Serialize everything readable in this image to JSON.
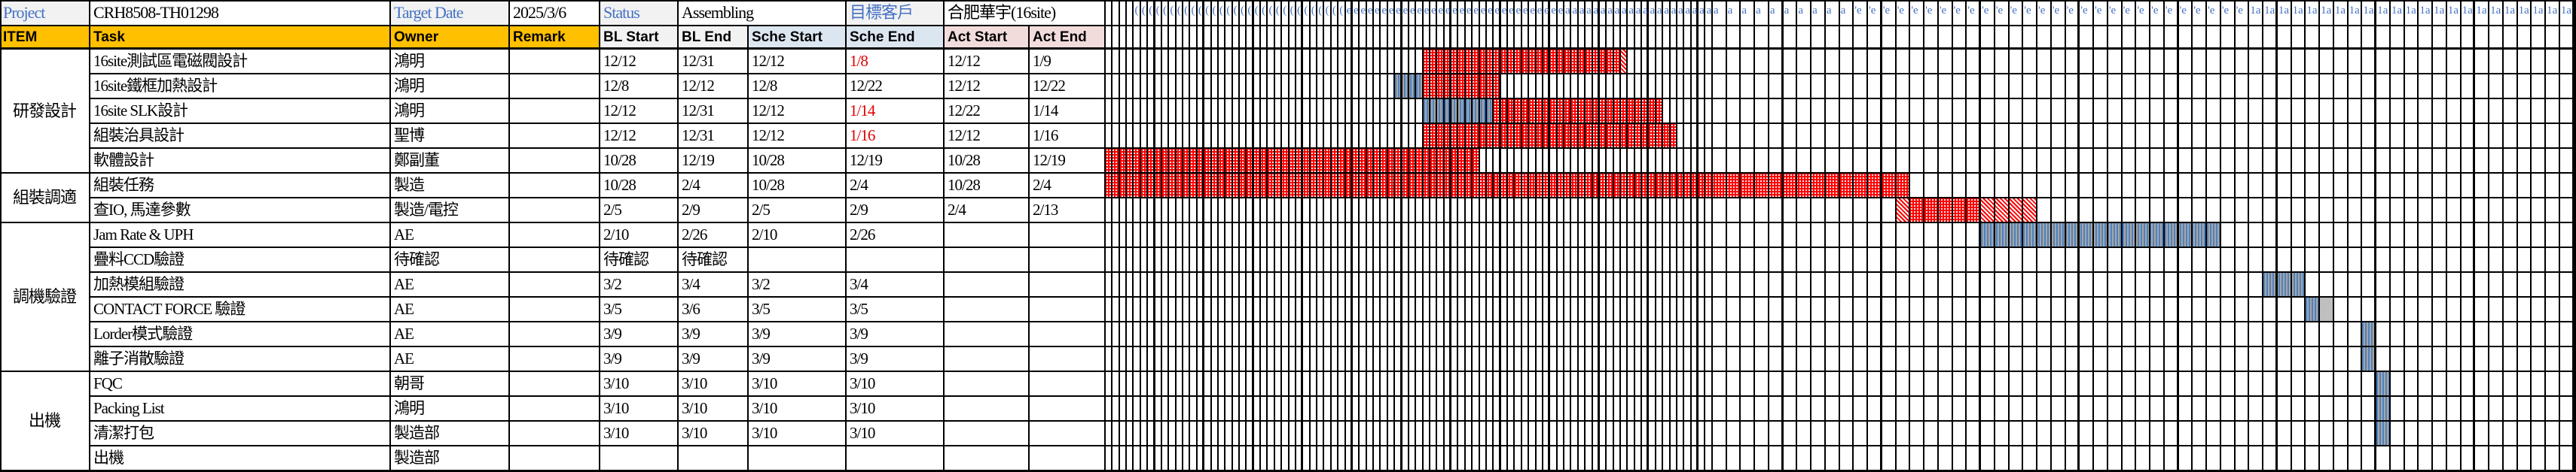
{
  "header": {
    "project_label": "Project",
    "project_value": "CRH8508-TH01298",
    "target_date_label": "Target Date",
    "target_date_value": "2025/3/6",
    "status_label": "Status",
    "status_value": "Assembling",
    "customer_label": "目標客戶",
    "customer_value": "合肥華宇(16site)"
  },
  "columns": {
    "item": "ITEM",
    "task": "Task",
    "owner": "Owner",
    "remark": "Remark",
    "bl_start": "BL Start",
    "bl_end": "BL End",
    "sche_start": "Sche Start",
    "sche_end": "Sche End",
    "act_start": "Act Start",
    "act_end": "Act End"
  },
  "groups": [
    {
      "name": "研發設計",
      "rows": 5
    },
    {
      "name": "組裝調適",
      "rows": 2
    },
    {
      "name": "調機驗證",
      "rows": 6
    },
    {
      "name": "出機",
      "rows": 4
    }
  ],
  "tasks": [
    {
      "task": "16site測試區電磁閥設計",
      "owner": "鴻明",
      "remark": "",
      "bl_start": "12/12",
      "bl_end": "12/31",
      "sche_start": "12/12",
      "sche_end": "1/8",
      "sche_end_late": true,
      "act_start": "12/12",
      "act_end": "1/9",
      "bars": [
        {
          "start": "12/12",
          "end": "1/8",
          "type": "actual"
        },
        {
          "start": "1/9",
          "end": "1/9",
          "type": "delay"
        }
      ]
    },
    {
      "task": "16site鐵框加熱設計",
      "owner": "鴻明",
      "remark": "",
      "bl_start": "12/8",
      "bl_end": "12/12",
      "sche_start": "12/8",
      "sche_end": "12/22",
      "sche_end_late": false,
      "act_start": "12/12",
      "act_end": "12/22",
      "bars": [
        {
          "start": "12/8",
          "end": "12/11",
          "type": "plan"
        },
        {
          "start": "12/12",
          "end": "12/22",
          "type": "actual"
        }
      ]
    },
    {
      "task": "16site SLK設計",
      "owner": "鴻明",
      "remark": "",
      "bl_start": "12/12",
      "bl_end": "12/31",
      "sche_start": "12/12",
      "sche_end": "1/14",
      "sche_end_late": true,
      "act_start": "12/22",
      "act_end": "1/14",
      "bars": [
        {
          "start": "12/12",
          "end": "12/21",
          "type": "plan"
        },
        {
          "start": "12/22",
          "end": "1/14",
          "type": "actual"
        }
      ]
    },
    {
      "task": "組裝治具設計",
      "owner": "聖博",
      "remark": "",
      "bl_start": "12/12",
      "bl_end": "12/31",
      "sche_start": "12/12",
      "sche_end": "1/16",
      "sche_end_late": true,
      "act_start": "12/12",
      "act_end": "1/16",
      "bars": [
        {
          "start": "12/12",
          "end": "1/16",
          "type": "actual"
        }
      ]
    },
    {
      "task": "軟體設計",
      "owner": "鄭副董",
      "remark": "",
      "bl_start": "10/28",
      "bl_end": "12/19",
      "sche_start": "10/28",
      "sche_end": "12/19",
      "sche_end_late": false,
      "act_start": "10/28",
      "act_end": "12/19",
      "bars": [
        {
          "start": "10/28",
          "end": "12/19",
          "type": "actual"
        }
      ]
    },
    {
      "task": "組裝任務",
      "owner": "製造",
      "remark": "",
      "bl_start": "10/28",
      "bl_end": "2/4",
      "sche_start": "10/28",
      "sche_end": "2/4",
      "sche_end_late": false,
      "act_start": "10/28",
      "act_end": "2/4",
      "bars": [
        {
          "start": "10/28",
          "end": "2/4",
          "type": "actual"
        }
      ]
    },
    {
      "task": "查IO, 馬達參數",
      "owner": "製造/電控",
      "remark": "",
      "bl_start": "2/5",
      "bl_end": "2/9",
      "sche_start": "2/5",
      "sche_end": "2/9",
      "sche_end_late": false,
      "act_start": "2/4",
      "act_end": "2/13",
      "bars": [
        {
          "start": "2/4",
          "end": "2/4",
          "type": "delay"
        },
        {
          "start": "2/5",
          "end": "2/9",
          "type": "actual"
        },
        {
          "start": "2/10",
          "end": "2/13",
          "type": "delay"
        }
      ]
    },
    {
      "task": "Jam Rate & UPH",
      "owner": "AE",
      "remark": "",
      "bl_start": "2/10",
      "bl_end": "2/26",
      "sche_start": "2/10",
      "sche_end": "2/26",
      "sche_end_late": false,
      "act_start": "",
      "act_end": "",
      "bars": [
        {
          "start": "2/10",
          "end": "2/26",
          "type": "plan"
        }
      ]
    },
    {
      "task": "疊料CCD驗證",
      "owner": "待確認",
      "remark": "",
      "bl_start": "待確認",
      "bl_end": "待確認",
      "sche_start": "",
      "sche_end": "",
      "sche_end_late": false,
      "act_start": "",
      "act_end": "",
      "bars": []
    },
    {
      "task": "加熱模組驗證",
      "owner": "AE",
      "remark": "",
      "bl_start": "3/2",
      "bl_end": "3/4",
      "sche_start": "3/2",
      "sche_end": "3/4",
      "sche_end_late": false,
      "act_start": "",
      "act_end": "",
      "bars": [
        {
          "start": "3/2",
          "end": "3/4",
          "type": "plan"
        }
      ]
    },
    {
      "task": "CONTACT FORCE 驗證",
      "owner": "AE",
      "remark": "",
      "bl_start": "3/5",
      "bl_end": "3/6",
      "sche_start": "3/5",
      "sche_end": "3/5",
      "sche_end_late": false,
      "act_start": "",
      "act_end": "",
      "bars": [
        {
          "start": "3/5",
          "end": "3/5",
          "type": "plan"
        },
        {
          "start": "3/6",
          "end": "3/6",
          "type": "gray"
        }
      ]
    },
    {
      "task": "Lorder模式驗證",
      "owner": "AE",
      "remark": "",
      "bl_start": "3/9",
      "bl_end": "3/9",
      "sche_start": "3/9",
      "sche_end": "3/9",
      "sche_end_late": false,
      "act_start": "",
      "act_end": "",
      "bars": [
        {
          "start": "3/9",
          "end": "3/9",
          "type": "plan"
        }
      ]
    },
    {
      "task": "離子消散驗證",
      "owner": "AE",
      "remark": "",
      "bl_start": "3/9",
      "bl_end": "3/9",
      "sche_start": "3/9",
      "sche_end": "3/9",
      "sche_end_late": false,
      "act_start": "",
      "act_end": "",
      "bars": [
        {
          "start": "3/9",
          "end": "3/9",
          "type": "plan"
        }
      ]
    },
    {
      "task": "FQC",
      "owner": "朝哥",
      "remark": "",
      "bl_start": "3/10",
      "bl_end": "3/10",
      "sche_start": "3/10",
      "sche_end": "3/10",
      "sche_end_late": false,
      "act_start": "",
      "act_end": "",
      "bars": [
        {
          "start": "3/10",
          "end": "3/10",
          "type": "plan"
        }
      ]
    },
    {
      "task": "Packing List",
      "owner": "鴻明",
      "remark": "",
      "bl_start": "3/10",
      "bl_end": "3/10",
      "sche_start": "3/10",
      "sche_end": "3/10",
      "sche_end_late": false,
      "act_start": "",
      "act_end": "",
      "bars": [
        {
          "start": "3/10",
          "end": "3/10",
          "type": "plan"
        }
      ]
    },
    {
      "task": "清潔打包",
      "owner": "製造部",
      "remark": "",
      "bl_start": "3/10",
      "bl_end": "3/10",
      "sche_start": "3/10",
      "sche_end": "3/10",
      "sche_end_late": false,
      "act_start": "",
      "act_end": "",
      "bars": [
        {
          "start": "3/10",
          "end": "3/10",
          "type": "plan"
        }
      ]
    },
    {
      "task": "出機",
      "owner": "製造部",
      "remark": "",
      "bl_start": "",
      "bl_end": "",
      "sche_start": "",
      "sche_end": "",
      "sche_end_late": false,
      "act_start": "",
      "act_end": "",
      "bars": []
    }
  ],
  "timeline": {
    "first_day": "10/28",
    "last_day": "3/23",
    "month_glyphs": {
      "11": "(",
      "12": "e",
      "1": "a",
      "2": "'e",
      "3": "1a"
    }
  },
  "colors": {
    "header_orange": "#ffc000",
    "label_blue": "#4472c4",
    "late_red": "#e00000",
    "actual_red": "#ff0000",
    "plan_blue": "#4f81bd",
    "gray": "#bfbfbf"
  }
}
